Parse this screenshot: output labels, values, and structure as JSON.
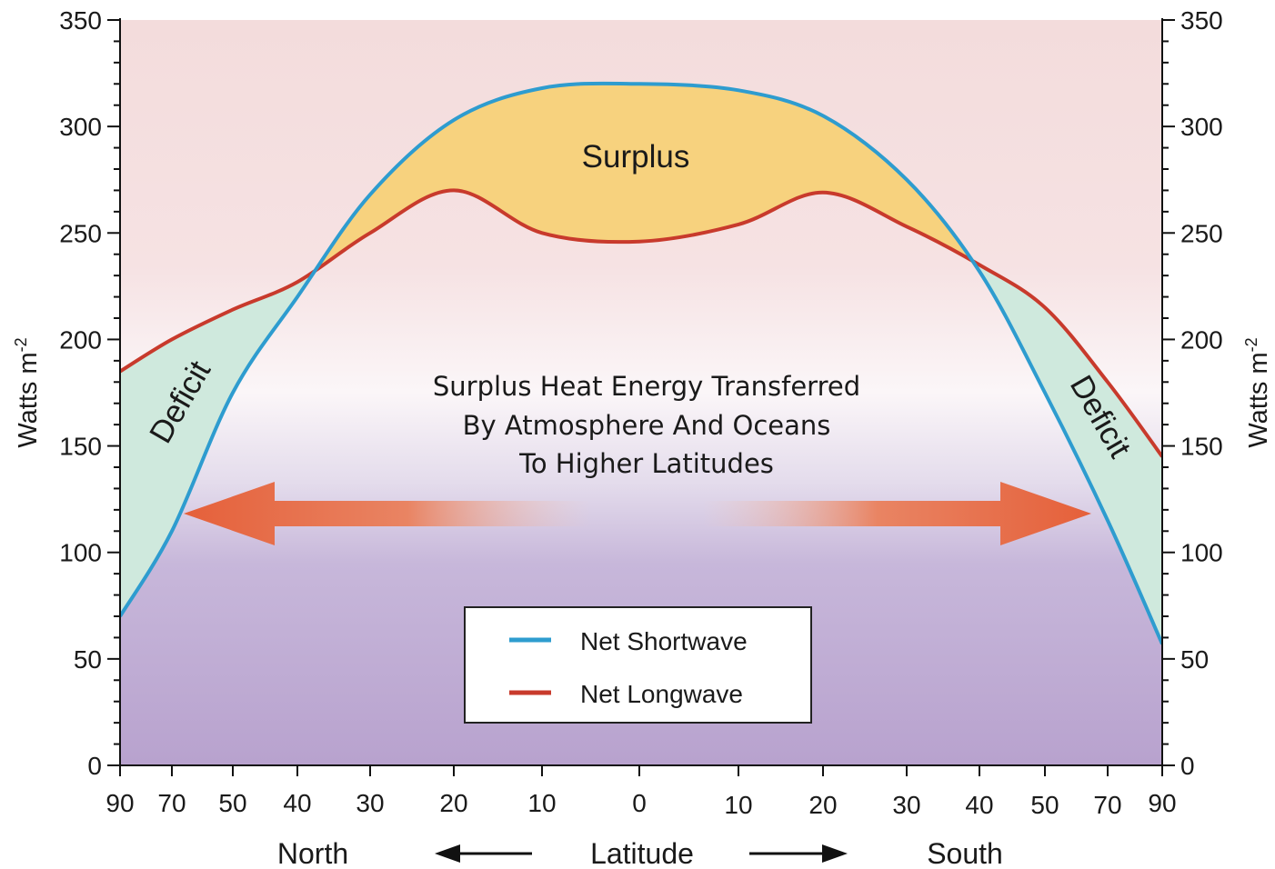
{
  "chart_data": {
    "type": "line",
    "x": [
      "90",
      "70",
      "50",
      "40",
      "30",
      "20",
      "10",
      "0",
      "10",
      "20",
      "30",
      "40",
      "50",
      "70",
      "90"
    ],
    "series": [
      {
        "name": "Net Shortwave",
        "color": "#2e9ccf",
        "values": [
          70,
          110,
          175,
          220,
          268,
          303,
          318,
          320,
          317,
          305,
          275,
          232,
          175,
          115,
          57
        ]
      },
      {
        "name": "Net Longwave",
        "color": "#c83a2c",
        "values": [
          185,
          200,
          214,
          227,
          250,
          270,
          250,
          246,
          254,
          269,
          253,
          235,
          215,
          180,
          145
        ]
      }
    ],
    "ylabel": "Watts m",
    "ylabel_sup": "-2",
    "ylim": [
      0,
      350
    ],
    "yticks": [
      0,
      50,
      100,
      150,
      200,
      250,
      300,
      350
    ],
    "xlabel": "Latitude",
    "x_left_label": "North",
    "x_right_label": "South",
    "annotations": {
      "surplus": "Surplus",
      "deficit_left": "Deficit",
      "deficit_right": "Deficit",
      "transfer_lines": [
        "Surplus Heat Energy Transferred",
        "By Atmosphere And Oceans",
        "To Higher Latitudes"
      ]
    },
    "legend_placement": "bottom-center",
    "colors": {
      "surplus_fill": "#f7d27e",
      "deficit_fill": "#cfe9dd",
      "arrow": "#e5603a",
      "background_top": "#f3dcdc",
      "background_bottom": "#b8a2ce"
    }
  }
}
